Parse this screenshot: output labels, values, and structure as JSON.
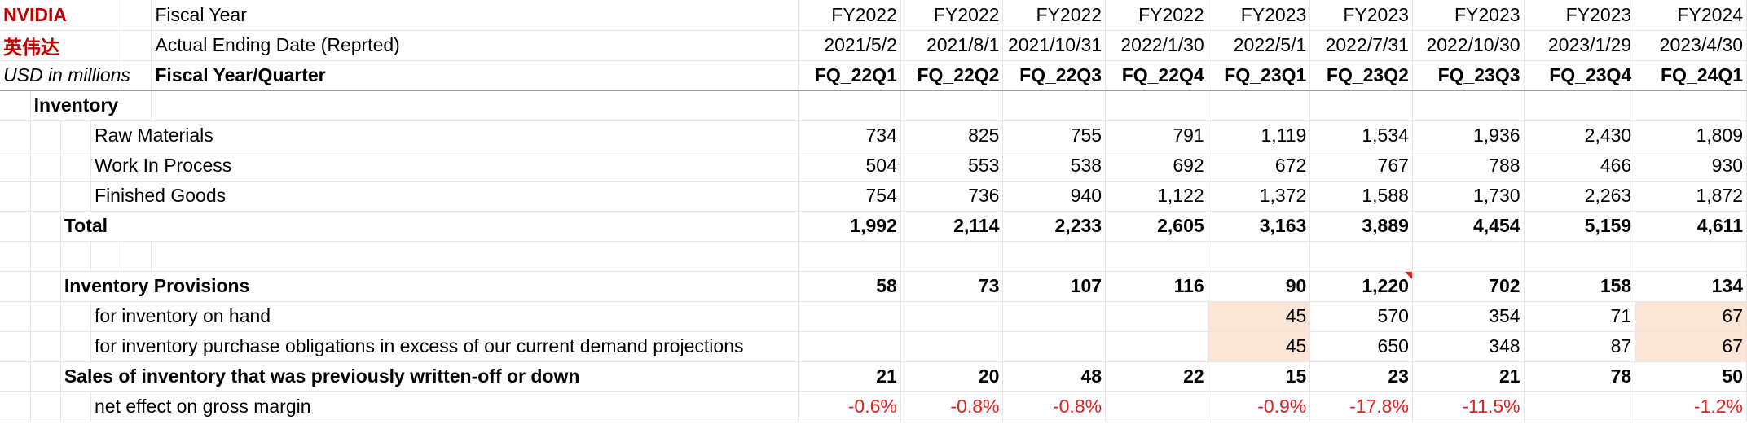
{
  "header": {
    "company_en": "NVIDIA",
    "company_cn": "英伟达",
    "units": "USD in millions",
    "row_labels": [
      "Fiscal Year",
      "Actual Ending Date (Reprted)",
      "Fiscal Year/Quarter"
    ],
    "fiscal_years": [
      "FY2022",
      "FY2022",
      "FY2022",
      "FY2022",
      "FY2023",
      "FY2023",
      "FY2023",
      "FY2023",
      "FY2024"
    ],
    "ending_dates": [
      "2021/5/2",
      "2021/8/1",
      "2021/10/31",
      "2022/1/30",
      "2022/5/1",
      "2022/7/31",
      "2022/10/30",
      "2023/1/29",
      "2023/4/30"
    ],
    "quarters": [
      "FQ_22Q1",
      "FQ_22Q2",
      "FQ_22Q3",
      "FQ_22Q4",
      "FQ_23Q1",
      "FQ_23Q2",
      "FQ_23Q3",
      "FQ_23Q4",
      "FQ_24Q1"
    ]
  },
  "inventory": {
    "title": "Inventory",
    "raw_materials": {
      "label": "Raw Materials",
      "values": [
        "734",
        "825",
        "755",
        "791",
        "1,119",
        "1,534",
        "1,936",
        "2,430",
        "1,809"
      ]
    },
    "work_in_process": {
      "label": "Work In Process",
      "values": [
        "504",
        "553",
        "538",
        "692",
        "672",
        "767",
        "788",
        "466",
        "930"
      ]
    },
    "finished_goods": {
      "label": "Finished Goods",
      "values": [
        "754",
        "736",
        "940",
        "1,122",
        "1,372",
        "1,588",
        "1,730",
        "2,263",
        "1,872"
      ]
    },
    "total": {
      "label": "Total",
      "values": [
        "1,992",
        "2,114",
        "2,233",
        "2,605",
        "3,163",
        "3,889",
        "4,454",
        "5,159",
        "4,611"
      ]
    }
  },
  "provisions": {
    "title": {
      "label": "Inventory Provisions",
      "values": [
        "58",
        "73",
        "107",
        "116",
        "90",
        "1,220",
        "702",
        "158",
        "134"
      ]
    },
    "on_hand": {
      "label": "for inventory on hand",
      "values": [
        "",
        "",
        "",
        "",
        "45",
        "570",
        "354",
        "71",
        "67"
      ]
    },
    "purchase_obligations": {
      "label": "for inventory purchase obligations in excess of our current demand projections",
      "values": [
        "",
        "",
        "",
        "",
        "45",
        "650",
        "348",
        "87",
        "67"
      ]
    },
    "sales_written_off": {
      "label": "Sales of inventory that was previously written-off or down",
      "values": [
        "21",
        "20",
        "48",
        "22",
        "15",
        "23",
        "21",
        "78",
        "50"
      ]
    },
    "net_effect": {
      "label": "net effect on gross margin",
      "values": [
        "-0.6%",
        "-0.8%",
        "-0.8%",
        "",
        "-0.9%",
        "-17.8%",
        "-11.5%",
        "",
        "-1.2%"
      ]
    }
  },
  "colors": {
    "brand_red": "#c00000",
    "negative_red": "#e02020",
    "highlight": "#fbe5d6",
    "grid": "#e6e6e6"
  }
}
